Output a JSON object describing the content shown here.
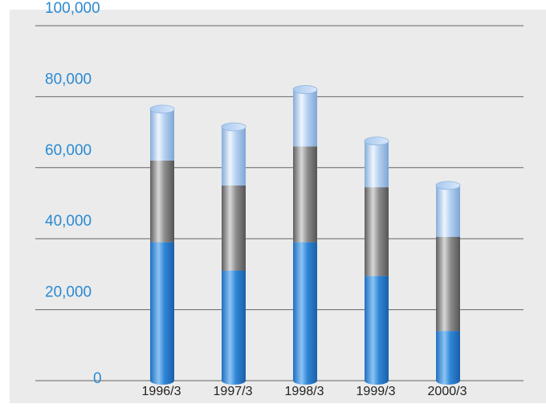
{
  "chart_data": {
    "type": "bar",
    "stacked": true,
    "categories": [
      "1996/3",
      "1997/3",
      "1998/3",
      "1999/3",
      "2000/3"
    ],
    "series": [
      {
        "values": [
          39000,
          31000,
          39000,
          29500,
          14000
        ],
        "color": "#2f86d6"
      },
      {
        "values": [
          23000,
          24000,
          27000,
          25000,
          26500
        ],
        "color": "#8c8c8c"
      },
      {
        "values": [
          14500,
          16500,
          16000,
          13000,
          14500
        ],
        "color": "#a8c8ee"
      }
    ],
    "y_ticks": [
      "0",
      "20,000",
      "40,000",
      "60,000",
      "80,000",
      "100,000"
    ],
    "ylim": [
      0,
      100000
    ],
    "grid": true,
    "title": "",
    "xlabel": "",
    "ylabel": ""
  }
}
